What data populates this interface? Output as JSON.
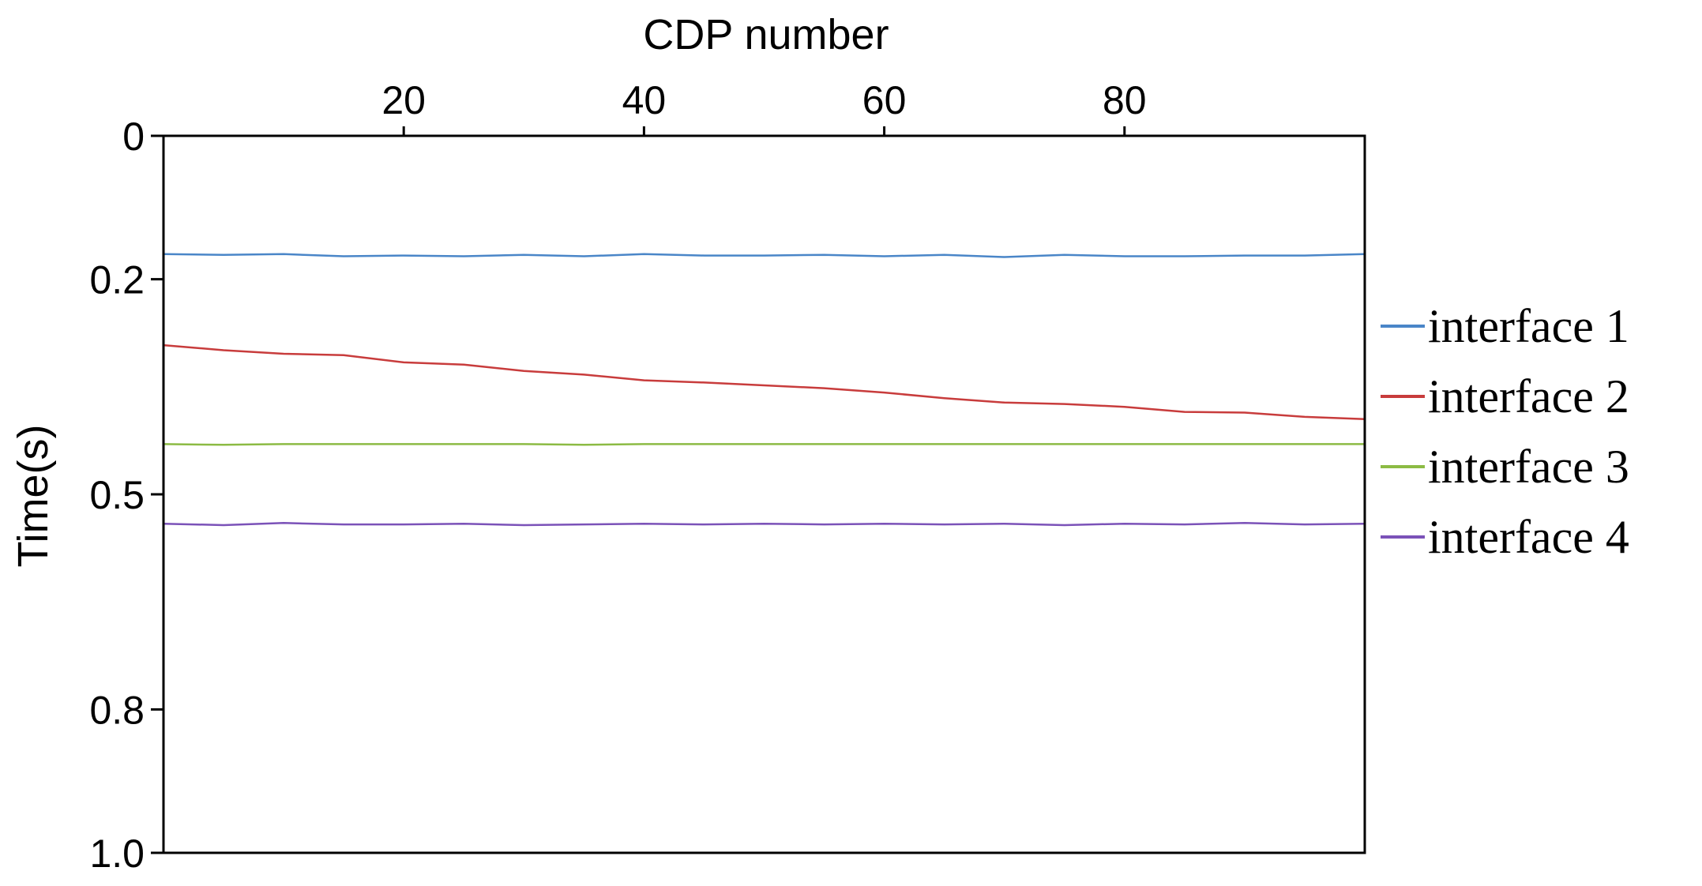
{
  "chart_data": {
    "type": "line",
    "xlabel": "CDP number",
    "ylabel": "Time(s)",
    "xlim": [
      0,
      100
    ],
    "ylim": [
      0,
      1.0
    ],
    "y_inverted": true,
    "x_axis_position": "top",
    "grid": false,
    "legend_placement": "right",
    "x_ticks": [
      20,
      40,
      60,
      80
    ],
    "x_tick_labels": [
      "20",
      "40",
      "60",
      "80"
    ],
    "y_ticks": [
      0,
      0.2,
      0.5,
      0.8,
      1.0
    ],
    "y_tick_labels": [
      "0",
      "0.2",
      "0.5",
      "0.8",
      "1.0"
    ],
    "x": [
      0,
      5,
      10,
      15,
      20,
      25,
      30,
      35,
      40,
      45,
      50,
      55,
      60,
      65,
      70,
      75,
      80,
      85,
      90,
      95,
      100
    ],
    "series": [
      {
        "name": "interface 1",
        "color": "#4a86c8",
        "values": [
          0.165,
          0.166,
          0.165,
          0.168,
          0.167,
          0.168,
          0.166,
          0.168,
          0.165,
          0.167,
          0.167,
          0.166,
          0.168,
          0.166,
          0.169,
          0.166,
          0.168,
          0.168,
          0.167,
          0.167,
          0.165
        ]
      },
      {
        "name": "interface 2",
        "color": "#c83c3c",
        "values": [
          0.292,
          0.299,
          0.304,
          0.306,
          0.316,
          0.319,
          0.328,
          0.333,
          0.341,
          0.344,
          0.348,
          0.352,
          0.358,
          0.366,
          0.372,
          0.374,
          0.378,
          0.385,
          0.386,
          0.392,
          0.395
        ]
      },
      {
        "name": "interface 3",
        "color": "#8cbb44",
        "values": [
          0.43,
          0.431,
          0.43,
          0.43,
          0.43,
          0.43,
          0.43,
          0.431,
          0.43,
          0.43,
          0.43,
          0.43,
          0.43,
          0.43,
          0.43,
          0.43,
          0.43,
          0.43,
          0.43,
          0.43,
          0.43
        ]
      },
      {
        "name": "interface 4",
        "color": "#7b52b8",
        "values": [
          0.541,
          0.543,
          0.54,
          0.542,
          0.542,
          0.541,
          0.543,
          0.542,
          0.541,
          0.542,
          0.541,
          0.542,
          0.541,
          0.542,
          0.541,
          0.543,
          0.541,
          0.542,
          0.54,
          0.542,
          0.541
        ]
      }
    ]
  }
}
